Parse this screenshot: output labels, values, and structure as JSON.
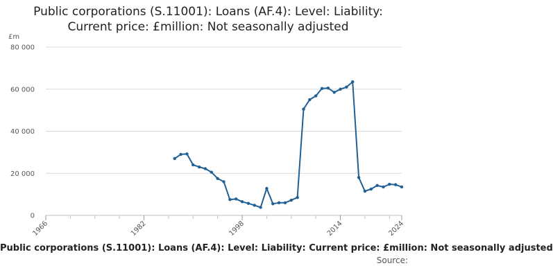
{
  "chart_data": {
    "type": "line",
    "title_lines": [
      "Public corporations (S.11001): Loans (AF.4): Level: Liability:",
      "Current price: £million: Not seasonally adjusted"
    ],
    "subtitle_bottom": "Public corporations (S.11001): Loans (AF.4): Level: Liability: Current price: £million: Not seasonally adjusted",
    "source_label": "Source:",
    "ylabel": "£m",
    "xlim": [
      1966,
      2024
    ],
    "ylim": [
      0,
      80000
    ],
    "x_ticks": [
      "1966",
      "1982",
      "1998",
      "2014",
      "2024"
    ],
    "y_ticks": [
      "0",
      "20 000",
      "40 000",
      "60 000",
      "80 000"
    ],
    "grid": "horizontal",
    "legend": "none",
    "series": [
      {
        "x": [
          1987,
          1988,
          1989,
          1990,
          1991,
          1992,
          1993,
          1994,
          1995,
          1996,
          1997,
          1998,
          1999,
          2000,
          2001,
          2002,
          2003,
          2004,
          2005,
          2006,
          2007,
          2008,
          2009,
          2010,
          2011,
          2012,
          2013,
          2014,
          2015,
          2016,
          2017,
          2018,
          2019,
          2020,
          2021,
          2022,
          2023,
          2024
        ],
        "values": [
          27000,
          29000,
          29200,
          24000,
          23000,
          22200,
          20500,
          17500,
          16000,
          7500,
          7800,
          6500,
          5700,
          4800,
          3800,
          12800,
          5500,
          6000,
          6000,
          7200,
          8500,
          50500,
          55000,
          56800,
          60300,
          60500,
          58500,
          60000,
          61000,
          63500,
          18000,
          11500,
          12500,
          14200,
          13500,
          14800,
          14600,
          13500
        ]
      }
    ],
    "line_color": "#206095",
    "grid_color": "#d9d9d9",
    "axis_color": "#bfbfbf"
  }
}
